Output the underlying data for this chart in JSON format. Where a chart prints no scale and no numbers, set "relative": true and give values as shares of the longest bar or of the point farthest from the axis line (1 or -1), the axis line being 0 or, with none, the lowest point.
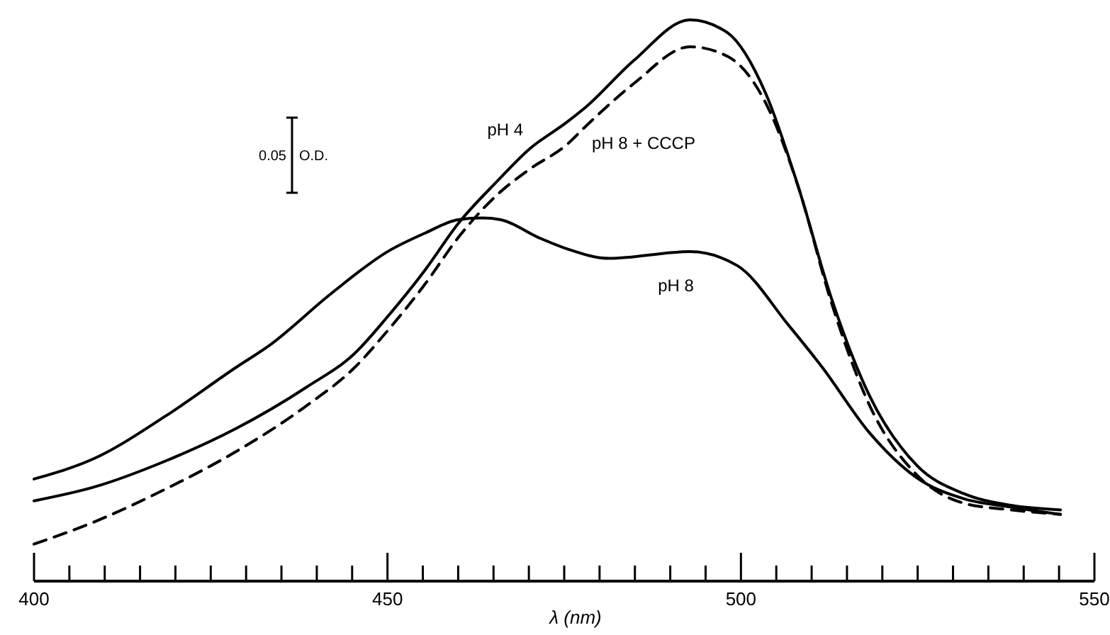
{
  "chart_data": {
    "type": "line",
    "relative": true,
    "xlabel": "λ (nm)",
    "annotations": [
      "0.05 O.D."
    ],
    "xlim": [
      400,
      550
    ],
    "xticks": [
      400,
      {
        "value": 405,
        "label": null
      },
      {
        "value": 410,
        "label": null
      },
      {
        "value": 415,
        "label": null
      },
      {
        "value": 420,
        "label": null
      },
      {
        "value": 425,
        "label": null
      },
      {
        "value": 430,
        "label": null
      },
      {
        "value": 435,
        "label": null
      },
      {
        "value": 440,
        "label": null
      },
      {
        "value": 445,
        "label": null
      },
      450,
      {
        "value": 455,
        "label": null
      },
      {
        "value": 460,
        "label": null
      },
      {
        "value": 465,
        "label": null
      },
      {
        "value": 470,
        "label": null
      },
      {
        "value": 475,
        "label": null
      },
      {
        "value": 480,
        "label": null
      },
      {
        "value": 485,
        "label": null
      },
      {
        "value": 490,
        "label": null
      },
      {
        "value": 495,
        "label": null
      },
      500,
      {
        "value": 505,
        "label": null
      },
      {
        "value": 510,
        "label": null
      },
      {
        "value": 515,
        "label": null
      },
      {
        "value": 520,
        "label": null
      },
      {
        "value": 525,
        "label": null
      },
      {
        "value": 530,
        "label": null
      },
      {
        "value": 535,
        "label": null
      },
      {
        "value": 540,
        "label": null
      },
      {
        "value": 545,
        "label": null
      },
      550
    ],
    "grid": false,
    "legend": false,
    "series": [
      {
        "name": "pH 4",
        "color": "#000000",
        "line_style": "solid",
        "x": [
          400,
          408.6,
          418.6,
          428.6,
          438.6,
          445.3,
          450,
          455.3,
          460,
          465.4,
          470,
          475.4,
          478.1,
          484.8,
          492.8,
          498.1,
          503.5,
          508.1,
          512.8,
          518.2,
          524.9,
          531.5,
          538.2,
          545.2
        ],
        "values": [
          0.143,
          0.168,
          0.214,
          0.272,
          0.346,
          0.405,
          0.471,
          0.554,
          0.637,
          0.711,
          0.769,
          0.818,
          0.845,
          0.927,
          1.0,
          0.977,
          0.869,
          0.703,
          0.504,
          0.33,
          0.206,
          0.156,
          0.135,
          0.127
        ]
      },
      {
        "name": "pH 8 + CCCP",
        "color": "#000000",
        "line_style": "dashed",
        "x": [
          400,
          408.6,
          418.6,
          428.6,
          438.6,
          445.3,
          450,
          455.3,
          460,
          465.4,
          470,
          475.4,
          478.1,
          484.8,
          492.8,
          498.1,
          503.5,
          508.1,
          512.8,
          518.2,
          524.9,
          531.5,
          538.2,
          545.2
        ],
        "values": [
          0.066,
          0.106,
          0.164,
          0.231,
          0.313,
          0.38,
          0.446,
          0.529,
          0.612,
          0.687,
          0.733,
          0.778,
          0.811,
          0.886,
          0.952,
          0.935,
          0.852,
          0.703,
          0.496,
          0.313,
          0.189,
          0.139,
          0.127,
          0.119
        ]
      },
      {
        "name": "pH 8",
        "color": "#000000",
        "line_style": "solid",
        "x": [
          400,
          408.6,
          418.6,
          428.6,
          433.3,
          442,
          450,
          455.3,
          460,
          463.4,
          466,
          471.4,
          475.4,
          481.4,
          492.8,
          499.5,
          506.8,
          511.5,
          518.2,
          524.9,
          531.5,
          538.2,
          545.2
        ],
        "values": [
          0.182,
          0.219,
          0.294,
          0.381,
          0.42,
          0.512,
          0.587,
          0.62,
          0.644,
          0.647,
          0.644,
          0.612,
          0.592,
          0.575,
          0.587,
          0.562,
          0.455,
          0.381,
          0.264,
          0.184,
          0.147,
          0.132,
          0.119
        ]
      }
    ]
  }
}
